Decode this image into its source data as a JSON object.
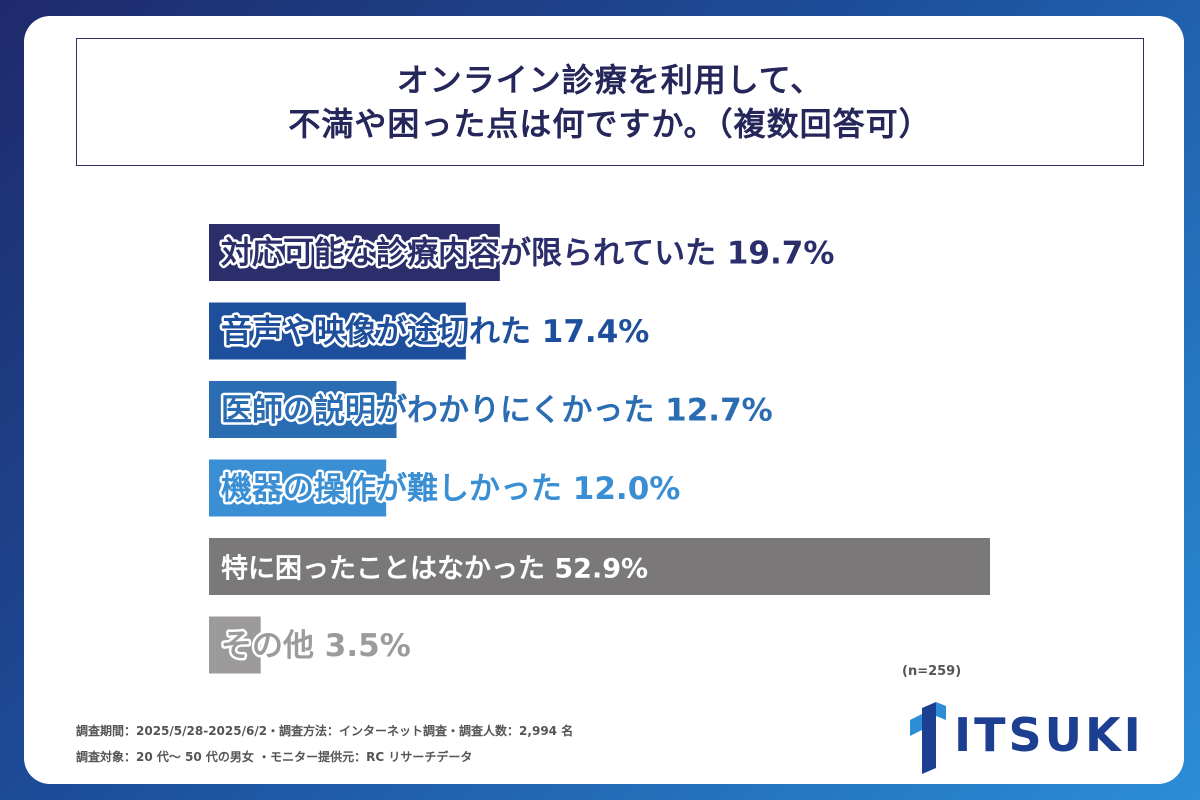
{
  "title": {
    "line1": "オンライン診療を利用して、",
    "line2": "不満や困った点は何ですか。（複数回答可）"
  },
  "chart_data": {
    "type": "bar",
    "orientation": "horizontal",
    "categories": [
      "対応可能な診療内容が限られていた",
      "音声や映像が途切れた",
      "医師の説明がわかりにくかった",
      "機器の操作が難しかった",
      "特に困ったことはなかった",
      "その他"
    ],
    "values": [
      19.7,
      17.4,
      12.7,
      12.0,
      52.9,
      3.5
    ],
    "value_labels": [
      "19.7%",
      "17.4%",
      "12.7%",
      "12.0%",
      "52.9%",
      "3.5%"
    ],
    "colors": [
      "#2b2e6b",
      "#1e4f9c",
      "#2a6db3",
      "#3a8fd4",
      "#7b7879",
      "#9c9a9b"
    ],
    "label_colors": [
      "#2b2e6b",
      "#1e4f9c",
      "#2a6db3",
      "#3a8fd4",
      "#ffffff",
      "#9c9a9b"
    ],
    "xlim": [
      0,
      52.9
    ]
  },
  "sample": "(n=259)",
  "footer": {
    "line1": "調査期間：2025/5/28-2025/6/2・調査方法：インターネット調査・調査人数：2,994 名",
    "line2": "調査対象：20 代～ 50 代の男女 ・モニター提供元：RC リサーチデータ"
  },
  "logo": {
    "text": "ITSUKI",
    "color": "#1d3f91"
  }
}
